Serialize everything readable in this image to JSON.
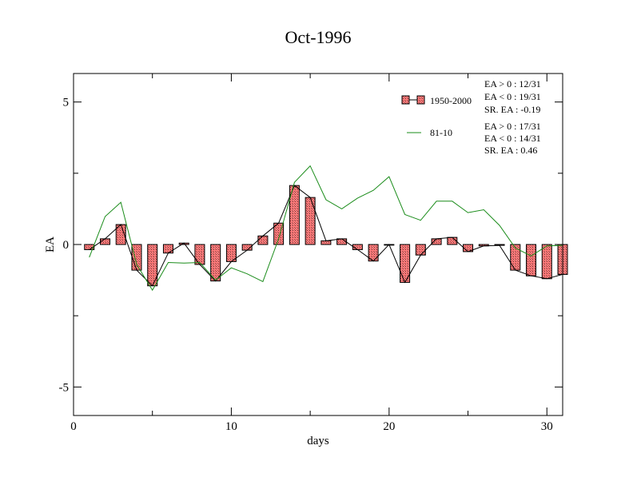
{
  "chart_data": {
    "type": "bar",
    "title": "Oct-1996",
    "xlabel": "days",
    "ylabel": "EA",
    "xlim": [
      0,
      31
    ],
    "ylim": [
      -6,
      6
    ],
    "x_ticks": [
      0,
      10,
      20,
      30
    ],
    "y_ticks": [
      -5,
      0,
      5
    ],
    "x_tick_labels": [
      "0",
      "10",
      "20",
      "30"
    ],
    "y_tick_labels": [
      "-5",
      "0",
      "5"
    ],
    "grid": false,
    "legend_position": "top-right",
    "days": [
      1,
      2,
      3,
      4,
      5,
      6,
      7,
      8,
      9,
      10,
      11,
      12,
      13,
      14,
      15,
      16,
      17,
      18,
      19,
      20,
      21,
      22,
      23,
      24,
      25,
      26,
      27,
      28,
      29,
      30,
      31
    ],
    "series": [
      {
        "name": "1950-2000",
        "kind": "bar",
        "color": "#ff6f6f",
        "values": [
          -0.18,
          0.2,
          0.7,
          -0.9,
          -1.45,
          -0.3,
          0.05,
          -0.7,
          -1.28,
          -0.6,
          -0.2,
          0.3,
          0.75,
          2.07,
          1.65,
          0.13,
          0.2,
          -0.18,
          -0.58,
          0.0,
          -1.33,
          -0.37,
          0.2,
          0.25,
          -0.25,
          -0.05,
          -0.03,
          -0.9,
          -1.1,
          -1.2,
          -1.05
        ]
      },
      {
        "name": "81-10",
        "kind": "line",
        "color": "#1a8c1a",
        "values": [
          -0.45,
          0.98,
          1.48,
          -0.7,
          -1.6,
          -0.63,
          -0.65,
          -0.63,
          -1.25,
          -0.82,
          -1.03,
          -1.3,
          0.2,
          2.18,
          2.76,
          1.57,
          1.25,
          1.63,
          1.9,
          2.38,
          1.05,
          0.85,
          1.52,
          1.52,
          1.12,
          1.22,
          0.67,
          -0.12,
          -0.4,
          -0.05,
          -0.03
        ]
      }
    ],
    "stats": [
      {
        "lines": [
          "EA > 0 : 12/31",
          "EA < 0 : 19/31",
          "SR. EA : -0.19"
        ]
      },
      {
        "lines": [
          "EA > 0 : 17/31",
          "EA < 0 : 14/31",
          "SR. EA :  0.46"
        ]
      }
    ]
  }
}
